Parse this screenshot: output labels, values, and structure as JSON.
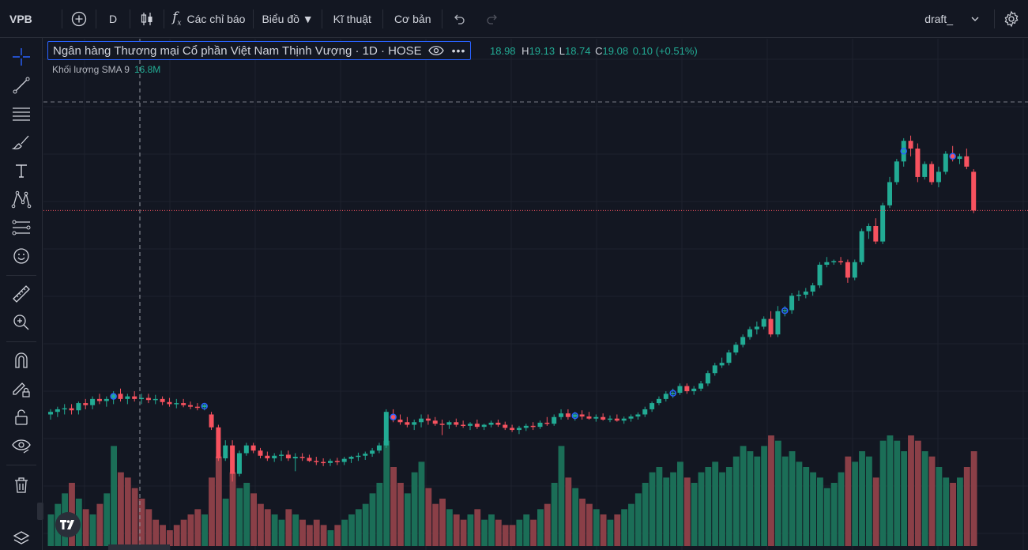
{
  "topbar": {
    "symbol": "VPB",
    "interval": "D",
    "indicators_label": "Các chỉ báo",
    "chart_label": "Biểu đồ ▼",
    "technical_label": "Kĩ thuật",
    "fundamental_label": "Cơ bản",
    "layout_name": "draft_"
  },
  "legend": {
    "title": "Ngân hàng Thương mại Cổ phần Việt Nam Thịnh Vượng · 1D · HOSE",
    "open_value": "18.98",
    "high_key": "H",
    "high_value": "19.13",
    "low_key": "L",
    "low_value": "18.74",
    "close_key": "C",
    "close_value": "19.08",
    "change": "0.10 (+0.51%)",
    "volume_label": "Khối lượng SMA 9",
    "volume_value": "16.8M"
  },
  "leftbar_icons": [
    "crosshair-icon",
    "trendline-icon",
    "horizontal-lines-icon",
    "brush-icon",
    "text-icon",
    "pattern-icon",
    "prediction-icon",
    "emoji-icon",
    "ruler-icon",
    "zoom-in-icon",
    "magnet-icon",
    "lock-drawing-icon",
    "unlock-icon",
    "eye-icon",
    "trash-icon",
    "layers-icon"
  ],
  "colors": {
    "up": "#22ab94",
    "down": "#f7525f",
    "background": "#131722",
    "grid": "#1e222d",
    "up_volume": "#1b6e57",
    "down_volume": "#8a3f47",
    "accent": "#2962ff"
  },
  "chart_data": {
    "type": "candlestick",
    "title": "Ngân hàng Thương mại Cổ phần Việt Nam Thịnh Vượng · 1D · HOSE",
    "candles": [
      [
        17.6,
        17.7,
        17.5,
        17.65
      ],
      [
        17.65,
        17.75,
        17.55,
        17.7
      ],
      [
        17.7,
        17.8,
        17.6,
        17.72
      ],
      [
        17.72,
        17.8,
        17.6,
        17.68
      ],
      [
        17.68,
        17.85,
        17.6,
        17.82
      ],
      [
        17.82,
        17.9,
        17.7,
        17.78
      ],
      [
        17.78,
        17.95,
        17.7,
        17.9
      ],
      [
        17.9,
        18.0,
        17.8,
        17.86
      ],
      [
        17.86,
        17.95,
        17.75,
        17.9
      ],
      [
        17.9,
        18.05,
        17.8,
        18.0
      ],
      [
        18.0,
        18.1,
        17.85,
        17.9
      ],
      [
        17.9,
        18.0,
        17.8,
        17.95
      ],
      [
        17.95,
        18.05,
        17.85,
        17.9
      ],
      [
        17.9,
        18.0,
        17.8,
        17.92
      ],
      [
        17.92,
        18.0,
        17.82,
        17.88
      ],
      [
        17.88,
        17.98,
        17.8,
        17.9
      ],
      [
        17.9,
        17.95,
        17.78,
        17.84
      ],
      [
        17.84,
        17.92,
        17.75,
        17.8
      ],
      [
        17.8,
        17.9,
        17.72,
        17.82
      ],
      [
        17.82,
        17.9,
        17.74,
        17.78
      ],
      [
        17.78,
        17.85,
        17.7,
        17.75
      ],
      [
        17.75,
        17.82,
        17.68,
        17.74
      ],
      [
        17.74,
        17.82,
        17.68,
        17.78
      ],
      [
        17.6,
        17.65,
        17.3,
        17.35
      ],
      [
        17.35,
        17.4,
        16.7,
        16.75
      ],
      [
        16.75,
        17.1,
        16.7,
        17.0
      ],
      [
        17.0,
        17.1,
        16.3,
        16.45
      ],
      [
        16.45,
        16.9,
        16.4,
        16.85
      ],
      [
        16.85,
        17.05,
        16.8,
        17.0
      ],
      [
        17.0,
        17.05,
        16.85,
        16.9
      ],
      [
        16.9,
        16.95,
        16.75,
        16.8
      ],
      [
        16.8,
        16.88,
        16.7,
        16.75
      ],
      [
        16.75,
        16.85,
        16.68,
        16.8
      ],
      [
        16.8,
        16.9,
        16.7,
        16.82
      ],
      [
        16.82,
        16.9,
        16.7,
        16.75
      ],
      [
        16.75,
        16.85,
        16.5,
        16.78
      ],
      [
        16.78,
        16.85,
        16.7,
        16.76
      ],
      [
        16.76,
        16.82,
        16.68,
        16.7
      ],
      [
        16.7,
        16.78,
        16.62,
        16.68
      ],
      [
        16.68,
        16.75,
        16.6,
        16.66
      ],
      [
        16.66,
        16.74,
        16.6,
        16.7
      ],
      [
        16.7,
        16.76,
        16.62,
        16.68
      ],
      [
        16.68,
        16.78,
        16.62,
        16.74
      ],
      [
        16.74,
        16.8,
        16.66,
        16.78
      ],
      [
        16.78,
        16.86,
        16.7,
        16.8
      ],
      [
        16.8,
        16.88,
        16.72,
        16.84
      ],
      [
        16.84,
        16.95,
        16.78,
        16.9
      ],
      [
        16.9,
        17.05,
        16.85,
        17.0
      ],
      [
        17.0,
        17.7,
        16.95,
        17.65
      ],
      [
        17.6,
        17.7,
        17.45,
        17.5
      ],
      [
        17.5,
        17.6,
        17.4,
        17.45
      ],
      [
        17.45,
        17.55,
        17.35,
        17.4
      ],
      [
        17.4,
        17.5,
        17.3,
        17.45
      ],
      [
        17.45,
        17.6,
        17.35,
        17.52
      ],
      [
        17.52,
        17.6,
        17.4,
        17.48
      ],
      [
        17.48,
        17.55,
        17.38,
        17.42
      ],
      [
        17.42,
        17.5,
        17.2,
        17.4
      ],
      [
        17.4,
        17.48,
        17.32,
        17.45
      ],
      [
        17.45,
        17.52,
        17.36,
        17.4
      ],
      [
        17.4,
        17.48,
        17.34,
        17.38
      ],
      [
        17.38,
        17.45,
        17.3,
        17.42
      ],
      [
        17.42,
        17.5,
        17.32,
        17.36
      ],
      [
        17.36,
        17.42,
        17.3,
        17.4
      ],
      [
        17.4,
        17.48,
        17.35,
        17.44
      ],
      [
        17.44,
        17.5,
        17.36,
        17.4
      ],
      [
        17.4,
        17.46,
        17.3,
        17.34
      ],
      [
        17.34,
        17.4,
        17.26,
        17.3
      ],
      [
        17.3,
        17.38,
        17.22,
        17.34
      ],
      [
        17.34,
        17.42,
        17.28,
        17.38
      ],
      [
        17.38,
        17.45,
        17.3,
        17.36
      ],
      [
        17.36,
        17.48,
        17.32,
        17.44
      ],
      [
        17.44,
        17.55,
        17.38,
        17.42
      ],
      [
        17.42,
        17.6,
        17.38,
        17.55
      ],
      [
        17.55,
        17.7,
        17.5,
        17.62
      ],
      [
        17.62,
        17.7,
        17.5,
        17.55
      ],
      [
        17.55,
        17.65,
        17.48,
        17.6
      ],
      [
        17.6,
        17.68,
        17.5,
        17.56
      ],
      [
        17.56,
        17.65,
        17.5,
        17.52
      ],
      [
        17.52,
        17.6,
        17.46,
        17.55
      ],
      [
        17.55,
        17.62,
        17.48,
        17.5
      ],
      [
        17.5,
        17.58,
        17.45,
        17.52
      ],
      [
        17.52,
        17.6,
        17.46,
        17.48
      ],
      [
        17.48,
        17.56,
        17.42,
        17.52
      ],
      [
        17.52,
        17.6,
        17.46,
        17.56
      ],
      [
        17.56,
        17.64,
        17.5,
        17.6
      ],
      [
        17.6,
        17.75,
        17.55,
        17.7
      ],
      [
        17.7,
        17.85,
        17.65,
        17.82
      ],
      [
        17.82,
        17.95,
        17.78,
        17.9
      ],
      [
        17.9,
        18.05,
        17.85,
        18.0
      ],
      [
        18.0,
        18.1,
        17.92,
        18.02
      ],
      [
        18.02,
        18.2,
        17.98,
        18.15
      ],
      [
        18.15,
        18.2,
        18.0,
        18.05
      ],
      [
        18.05,
        18.15,
        17.98,
        18.1
      ],
      [
        18.1,
        18.25,
        18.05,
        18.2
      ],
      [
        18.2,
        18.45,
        18.15,
        18.4
      ],
      [
        18.4,
        18.6,
        18.35,
        18.55
      ],
      [
        18.55,
        18.7,
        18.5,
        18.6
      ],
      [
        18.6,
        18.85,
        18.55,
        18.8
      ],
      [
        18.8,
        19.0,
        18.75,
        18.95
      ],
      [
        18.95,
        19.15,
        18.9,
        19.1
      ],
      [
        19.1,
        19.3,
        19.05,
        19.25
      ],
      [
        19.25,
        19.4,
        19.15,
        19.3
      ],
      [
        19.3,
        19.5,
        19.25,
        19.45
      ],
      [
        19.45,
        19.6,
        19.1,
        19.15
      ],
      [
        19.15,
        19.7,
        19.1,
        19.6
      ],
      [
        19.6,
        19.7,
        19.5,
        19.62
      ],
      [
        19.62,
        19.95,
        19.55,
        19.9
      ],
      [
        19.9,
        20.0,
        19.8,
        19.92
      ],
      [
        19.92,
        20.05,
        19.85,
        19.98
      ],
      [
        19.98,
        20.15,
        19.9,
        20.1
      ],
      [
        20.1,
        20.55,
        20.05,
        20.5
      ],
      [
        20.5,
        20.65,
        20.45,
        20.55
      ],
      [
        20.55,
        20.6,
        20.5,
        20.57
      ],
      [
        20.57,
        20.65,
        20.5,
        20.55
      ],
      [
        20.55,
        20.6,
        20.15,
        20.25
      ],
      [
        20.25,
        20.6,
        20.2,
        20.55
      ],
      [
        20.55,
        21.2,
        20.5,
        21.15
      ],
      [
        21.15,
        21.3,
        21.0,
        21.25
      ],
      [
        21.25,
        21.4,
        20.9,
        20.95
      ],
      [
        20.95,
        21.7,
        20.9,
        21.65
      ],
      [
        21.65,
        22.2,
        21.6,
        22.1
      ],
      [
        22.1,
        22.55,
        22.05,
        22.5
      ],
      [
        22.5,
        22.95,
        22.4,
        22.9
      ],
      [
        22.9,
        23.0,
        22.6,
        22.75
      ],
      [
        22.75,
        22.85,
        22.1,
        22.2
      ],
      [
        22.2,
        22.5,
        22.15,
        22.45
      ],
      [
        22.45,
        22.5,
        22.05,
        22.1
      ],
      [
        22.1,
        22.4,
        22.0,
        22.3
      ],
      [
        22.3,
        22.7,
        22.25,
        22.65
      ],
      [
        22.65,
        22.8,
        22.5,
        22.55
      ],
      [
        22.55,
        22.65,
        22.45,
        22.6
      ],
      [
        22.6,
        22.75,
        22.35,
        22.4
      ],
      [
        22.3,
        22.35,
        21.5,
        21.55
      ]
    ],
    "volumes": [
      [
        6,
        1
      ],
      [
        8,
        1
      ],
      [
        10,
        1
      ],
      [
        12,
        0
      ],
      [
        9,
        1
      ],
      [
        7,
        0
      ],
      [
        6,
        1
      ],
      [
        8,
        0
      ],
      [
        10,
        1
      ],
      [
        19,
        1
      ],
      [
        14,
        0
      ],
      [
        13,
        0
      ],
      [
        11,
        0
      ],
      [
        9,
        0
      ],
      [
        7,
        0
      ],
      [
        5,
        0
      ],
      [
        4,
        0
      ],
      [
        3,
        0
      ],
      [
        4,
        0
      ],
      [
        5,
        0
      ],
      [
        6,
        0
      ],
      [
        7,
        0
      ],
      [
        6,
        1
      ],
      [
        13,
        0
      ],
      [
        17,
        0
      ],
      [
        9,
        1
      ],
      [
        14,
        0
      ],
      [
        11,
        1
      ],
      [
        12,
        1
      ],
      [
        10,
        0
      ],
      [
        8,
        0
      ],
      [
        7,
        0
      ],
      [
        6,
        1
      ],
      [
        5,
        1
      ],
      [
        7,
        0
      ],
      [
        6,
        1
      ],
      [
        5,
        0
      ],
      [
        4,
        0
      ],
      [
        5,
        0
      ],
      [
        4,
        0
      ],
      [
        3,
        1
      ],
      [
        4,
        0
      ],
      [
        5,
        1
      ],
      [
        6,
        1
      ],
      [
        7,
        1
      ],
      [
        8,
        1
      ],
      [
        10,
        1
      ],
      [
        12,
        1
      ],
      [
        20,
        1
      ],
      [
        15,
        0
      ],
      [
        12,
        0
      ],
      [
        10,
        1
      ],
      [
        14,
        1
      ],
      [
        16,
        1
      ],
      [
        11,
        0
      ],
      [
        8,
        0
      ],
      [
        9,
        0
      ],
      [
        7,
        1
      ],
      [
        6,
        0
      ],
      [
        5,
        0
      ],
      [
        6,
        1
      ],
      [
        7,
        0
      ],
      [
        5,
        1
      ],
      [
        6,
        1
      ],
      [
        5,
        0
      ],
      [
        4,
        0
      ],
      [
        4,
        0
      ],
      [
        5,
        1
      ],
      [
        6,
        1
      ],
      [
        5,
        0
      ],
      [
        7,
        1
      ],
      [
        8,
        0
      ],
      [
        12,
        1
      ],
      [
        19,
        1
      ],
      [
        13,
        0
      ],
      [
        11,
        1
      ],
      [
        9,
        0
      ],
      [
        8,
        0
      ],
      [
        7,
        1
      ],
      [
        6,
        0
      ],
      [
        5,
        1
      ],
      [
        6,
        0
      ],
      [
        7,
        1
      ],
      [
        8,
        1
      ],
      [
        10,
        1
      ],
      [
        12,
        1
      ],
      [
        14,
        1
      ],
      [
        15,
        1
      ],
      [
        13,
        1
      ],
      [
        14,
        1
      ],
      [
        16,
        1
      ],
      [
        13,
        0
      ],
      [
        12,
        1
      ],
      [
        14,
        1
      ],
      [
        15,
        1
      ],
      [
        16,
        1
      ],
      [
        14,
        1
      ],
      [
        15,
        1
      ],
      [
        17,
        1
      ],
      [
        19,
        1
      ],
      [
        18,
        1
      ],
      [
        17,
        1
      ],
      [
        19,
        1
      ],
      [
        21,
        0
      ],
      [
        20,
        1
      ],
      [
        17,
        1
      ],
      [
        18,
        1
      ],
      [
        16,
        1
      ],
      [
        15,
        1
      ],
      [
        14,
        1
      ],
      [
        13,
        1
      ],
      [
        11,
        1
      ],
      [
        12,
        1
      ],
      [
        14,
        1
      ],
      [
        17,
        0
      ],
      [
        16,
        1
      ],
      [
        18,
        1
      ],
      [
        17,
        1
      ],
      [
        13,
        0
      ],
      [
        20,
        1
      ],
      [
        21,
        1
      ],
      [
        20,
        1
      ],
      [
        18,
        1
      ],
      [
        21,
        0
      ],
      [
        20,
        0
      ],
      [
        18,
        1
      ],
      [
        17,
        0
      ],
      [
        15,
        1
      ],
      [
        13,
        1
      ],
      [
        12,
        0
      ],
      [
        13,
        1
      ],
      [
        15,
        0
      ],
      [
        18,
        0
      ]
    ],
    "volume_unit": "M",
    "y_range": [
      16.0,
      23.5
    ],
    "last_price_line": 21.55,
    "grid": true
  }
}
